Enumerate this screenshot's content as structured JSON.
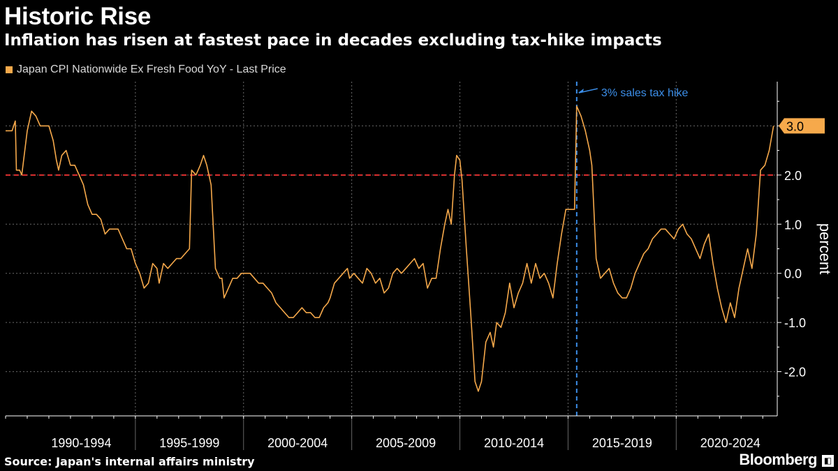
{
  "header": {
    "title": "Historic Rise",
    "subtitle": "Inflation has risen at fastest pace in decades excluding tax-hike impacts"
  },
  "footer": {
    "source": "Source: Japan's internal affairs ministry",
    "brand": "Bloomberg"
  },
  "colors": {
    "series": "#f6a94b",
    "threshold_line": "#e03030",
    "tax_marker": "#3c8ee8",
    "grid": "#6a6a6a",
    "axis_text": "#ffffff",
    "value_badge": "#f6a94b"
  },
  "chart_data": {
    "type": "line",
    "ylabel": "percent",
    "ylim": [
      -2.9,
      3.9
    ],
    "yticks": [
      {
        "value": -2,
        "label": "-2.0"
      },
      {
        "value": -1,
        "label": "-1.0"
      },
      {
        "value": 0,
        "label": "0.0"
      },
      {
        "value": 1,
        "label": "1.0"
      },
      {
        "value": 2,
        "label": "2.0"
      },
      {
        "value": 3,
        "label": "3.0"
      }
    ],
    "xlim": [
      1989.0,
      2024.67
    ],
    "x_periods": [
      {
        "label": "1990-1994",
        "start": 1990,
        "end": 1995
      },
      {
        "label": "1995-1999",
        "start": 1995,
        "end": 2000
      },
      {
        "label": "2000-2004",
        "start": 2000,
        "end": 2005
      },
      {
        "label": "2005-2009",
        "start": 2005,
        "end": 2010
      },
      {
        "label": "2010-2014",
        "start": 2010,
        "end": 2015
      },
      {
        "label": "2015-2019",
        "start": 2015,
        "end": 2020
      },
      {
        "label": "2020-2024",
        "start": 2020,
        "end": 2025
      }
    ],
    "grid": true,
    "legend": "top-left",
    "series": [
      {
        "name": "Japan CPI Nationwide Ex Fresh Food YoY - Last Price",
        "points": [
          [
            1989.0,
            2.9
          ],
          [
            1989.3,
            2.9
          ],
          [
            1989.45,
            3.1
          ],
          [
            1989.5,
            2.1
          ],
          [
            1989.65,
            2.1
          ],
          [
            1989.75,
            2.0
          ],
          [
            1990.0,
            2.9
          ],
          [
            1990.2,
            3.3
          ],
          [
            1990.4,
            3.2
          ],
          [
            1990.6,
            3.0
          ],
          [
            1990.8,
            3.0
          ],
          [
            1991.0,
            3.0
          ],
          [
            1991.2,
            2.7
          ],
          [
            1991.35,
            2.3
          ],
          [
            1991.45,
            2.1
          ],
          [
            1991.6,
            2.4
          ],
          [
            1991.8,
            2.5
          ],
          [
            1992.0,
            2.2
          ],
          [
            1992.2,
            2.2
          ],
          [
            1992.4,
            2.0
          ],
          [
            1992.6,
            1.8
          ],
          [
            1992.8,
            1.4
          ],
          [
            1993.0,
            1.2
          ],
          [
            1993.2,
            1.2
          ],
          [
            1993.4,
            1.1
          ],
          [
            1993.6,
            0.8
          ],
          [
            1993.8,
            0.9
          ],
          [
            1994.0,
            0.9
          ],
          [
            1994.2,
            0.9
          ],
          [
            1994.4,
            0.7
          ],
          [
            1994.6,
            0.5
          ],
          [
            1994.8,
            0.5
          ],
          [
            1995.0,
            0.2
          ],
          [
            1995.2,
            0.0
          ],
          [
            1995.4,
            -0.3
          ],
          [
            1995.6,
            -0.2
          ],
          [
            1995.8,
            0.2
          ],
          [
            1996.0,
            0.1
          ],
          [
            1996.1,
            -0.2
          ],
          [
            1996.3,
            0.2
          ],
          [
            1996.5,
            0.1
          ],
          [
            1996.7,
            0.2
          ],
          [
            1996.9,
            0.3
          ],
          [
            1997.1,
            0.3
          ],
          [
            1997.3,
            0.4
          ],
          [
            1997.5,
            0.5
          ],
          [
            1997.6,
            2.1
          ],
          [
            1997.8,
            2.0
          ],
          [
            1998.0,
            2.2
          ],
          [
            1998.15,
            2.4
          ],
          [
            1998.3,
            2.2
          ],
          [
            1998.5,
            1.8
          ],
          [
            1998.7,
            0.1
          ],
          [
            1998.9,
            -0.1
          ],
          [
            1999.0,
            -0.1
          ],
          [
            1999.1,
            -0.5
          ],
          [
            1999.3,
            -0.3
          ],
          [
            1999.5,
            -0.1
          ],
          [
            1999.7,
            -0.1
          ],
          [
            1999.9,
            0.0
          ],
          [
            2000.1,
            0.0
          ],
          [
            2000.3,
            0.0
          ],
          [
            2000.5,
            -0.1
          ],
          [
            2000.7,
            -0.2
          ],
          [
            2000.9,
            -0.2
          ],
          [
            2001.1,
            -0.3
          ],
          [
            2001.3,
            -0.4
          ],
          [
            2001.5,
            -0.6
          ],
          [
            2001.7,
            -0.7
          ],
          [
            2001.9,
            -0.8
          ],
          [
            2002.1,
            -0.9
          ],
          [
            2002.3,
            -0.9
          ],
          [
            2002.5,
            -0.8
          ],
          [
            2002.7,
            -0.7
          ],
          [
            2002.9,
            -0.8
          ],
          [
            2003.1,
            -0.8
          ],
          [
            2003.3,
            -0.9
          ],
          [
            2003.5,
            -0.9
          ],
          [
            2003.7,
            -0.7
          ],
          [
            2003.9,
            -0.6
          ],
          [
            2004.0,
            -0.5
          ],
          [
            2004.2,
            -0.2
          ],
          [
            2004.4,
            -0.1
          ],
          [
            2004.6,
            0.0
          ],
          [
            2004.8,
            0.1
          ],
          [
            2004.9,
            -0.1
          ],
          [
            2005.1,
            0.0
          ],
          [
            2005.3,
            -0.1
          ],
          [
            2005.5,
            -0.2
          ],
          [
            2005.7,
            0.1
          ],
          [
            2005.9,
            0.0
          ],
          [
            2006.1,
            -0.2
          ],
          [
            2006.3,
            -0.1
          ],
          [
            2006.5,
            -0.4
          ],
          [
            2006.7,
            -0.3
          ],
          [
            2006.9,
            0.0
          ],
          [
            2007.1,
            0.1
          ],
          [
            2007.3,
            0.0
          ],
          [
            2007.5,
            0.1
          ],
          [
            2007.7,
            0.2
          ],
          [
            2007.9,
            0.3
          ],
          [
            2008.1,
            0.1
          ],
          [
            2008.3,
            0.2
          ],
          [
            2008.5,
            -0.3
          ],
          [
            2008.7,
            -0.1
          ],
          [
            2008.9,
            -0.1
          ],
          [
            2009.1,
            0.5
          ],
          [
            2009.3,
            1.0
          ],
          [
            2009.45,
            1.3
          ],
          [
            2009.6,
            1.0
          ],
          [
            2009.75,
            2.0
          ],
          [
            2009.85,
            2.4
          ],
          [
            2010.0,
            2.3
          ],
          [
            2010.1,
            1.9
          ],
          [
            2010.3,
            0.5
          ],
          [
            2010.5,
            -0.8
          ],
          [
            2010.7,
            -2.2
          ],
          [
            2010.85,
            -2.4
          ],
          [
            2011.0,
            -2.2
          ],
          [
            2011.2,
            -1.4
          ],
          [
            2011.4,
            -1.2
          ],
          [
            2011.55,
            -1.5
          ],
          [
            2011.7,
            -1.0
          ],
          [
            2011.9,
            -1.1
          ],
          [
            2012.1,
            -0.8
          ],
          [
            2012.3,
            -0.2
          ],
          [
            2012.5,
            -0.7
          ],
          [
            2012.7,
            -0.4
          ],
          [
            2012.9,
            -0.2
          ],
          [
            2013.1,
            0.2
          ],
          [
            2013.3,
            -0.2
          ],
          [
            2013.5,
            0.2
          ],
          [
            2013.7,
            -0.1
          ],
          [
            2013.9,
            0.0
          ],
          [
            2014.1,
            -0.2
          ],
          [
            2014.3,
            -0.5
          ],
          [
            2014.5,
            0.2
          ],
          [
            2014.7,
            0.8
          ],
          [
            2014.9,
            1.3
          ],
          [
            2015.1,
            1.3
          ],
          [
            2015.3,
            1.3
          ],
          [
            2015.4,
            3.4
          ],
          [
            2015.6,
            3.2
          ],
          [
            2015.8,
            2.9
          ],
          [
            2016.0,
            2.5
          ],
          [
            2016.1,
            2.2
          ],
          [
            2016.3,
            0.3
          ],
          [
            2016.5,
            -0.1
          ],
          [
            2016.7,
            0.0
          ],
          [
            2016.9,
            0.1
          ],
          [
            2017.1,
            -0.2
          ],
          [
            2017.3,
            -0.4
          ],
          [
            2017.5,
            -0.5
          ],
          [
            2017.7,
            -0.5
          ],
          [
            2017.9,
            -0.3
          ],
          [
            2018.1,
            0.0
          ],
          [
            2018.3,
            0.2
          ],
          [
            2018.5,
            0.4
          ],
          [
            2018.7,
            0.5
          ],
          [
            2018.9,
            0.7
          ],
          [
            2019.1,
            0.8
          ],
          [
            2019.3,
            0.9
          ],
          [
            2019.5,
            0.9
          ],
          [
            2019.7,
            0.8
          ],
          [
            2019.9,
            0.7
          ],
          [
            2020.1,
            0.9
          ],
          [
            2020.3,
            1.0
          ],
          [
            2020.5,
            0.8
          ],
          [
            2020.7,
            0.7
          ],
          [
            2020.9,
            0.5
          ],
          [
            2021.1,
            0.3
          ],
          [
            2021.3,
            0.6
          ],
          [
            2021.5,
            0.8
          ],
          [
            2021.7,
            0.2
          ],
          [
            2021.9,
            -0.3
          ],
          [
            2022.1,
            -0.7
          ],
          [
            2022.3,
            -1.0
          ],
          [
            2022.5,
            -0.6
          ],
          [
            2022.7,
            -0.9
          ],
          [
            2022.9,
            -0.3
          ],
          [
            2023.1,
            0.1
          ],
          [
            2023.3,
            0.5
          ],
          [
            2023.5,
            0.1
          ],
          [
            2023.7,
            0.8
          ],
          [
            2023.9,
            2.1
          ],
          [
            2024.1,
            2.2
          ],
          [
            2024.3,
            2.5
          ],
          [
            2024.5,
            3.0
          ]
        ]
      }
    ],
    "reference_line": {
      "value": 2.0,
      "style": "dashed"
    },
    "event_marker": {
      "x": 2015.4,
      "label": "3% sales tax hike"
    },
    "last_value": {
      "value": 3.0,
      "label": "3.0"
    }
  }
}
